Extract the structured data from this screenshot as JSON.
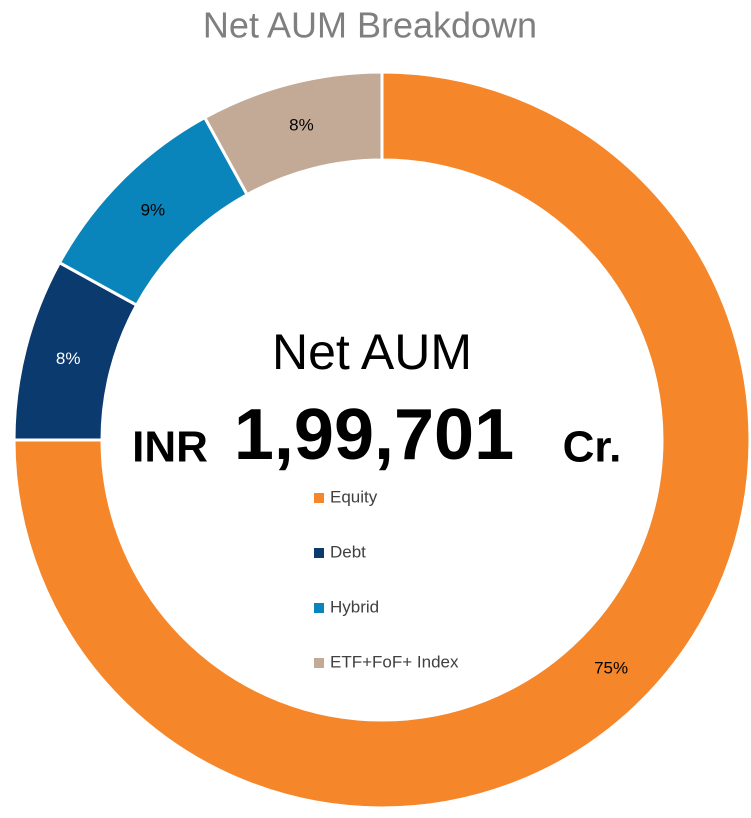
{
  "chart_data": {
    "type": "donut",
    "title": "Net AUM Breakdown",
    "center_title": "Net AUM",
    "center_prefix": "INR",
    "center_value": "1,99,701",
    "center_suffix": "Cr.",
    "categories": [
      "Equity",
      "Debt",
      "Hybrid",
      "ETF+FoF+ Index"
    ],
    "values": [
      75,
      8,
      9,
      8
    ],
    "value_labels": [
      "75%",
      "8%",
      "9%",
      "8%"
    ],
    "colors": [
      "#f5862a",
      "#0b3a6e",
      "#0a85bb",
      "#c2aa96"
    ]
  }
}
